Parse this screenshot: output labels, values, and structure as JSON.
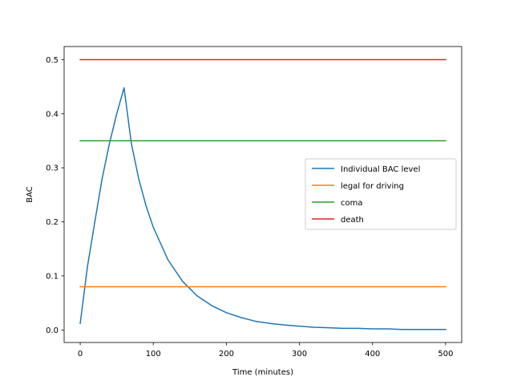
{
  "chart_data": {
    "type": "line",
    "title": "",
    "xlabel": "Time (minutes)",
    "ylabel": "BAC",
    "xlim": [
      -22,
      522
    ],
    "ylim": [
      -0.0232,
      0.5243
    ],
    "xticks": [
      0,
      100,
      200,
      300,
      400,
      500
    ],
    "xtick_labels": [
      "0",
      "100",
      "200",
      "300",
      "400",
      "500"
    ],
    "yticks": [
      0.0,
      0.1,
      0.2,
      0.3,
      0.4,
      0.5
    ],
    "ytick_labels": [
      "0.0",
      "0.1",
      "0.2",
      "0.3",
      "0.4",
      "0.5"
    ],
    "grid": false,
    "legend_position": "center-right",
    "series": [
      {
        "name": "Individual BAC level",
        "color": "#1f77b4",
        "x": [
          0,
          10,
          20,
          30,
          40,
          50,
          60,
          70,
          80,
          90,
          100,
          120,
          140,
          160,
          180,
          200,
          220,
          240,
          260,
          280,
          300,
          320,
          340,
          360,
          380,
          400,
          420,
          440,
          460,
          480,
          500
        ],
        "y": [
          0.012,
          0.118,
          0.2,
          0.28,
          0.345,
          0.4,
          0.448,
          0.345,
          0.28,
          0.23,
          0.19,
          0.13,
          0.09,
          0.063,
          0.045,
          0.032,
          0.023,
          0.016,
          0.012,
          0.009,
          0.007,
          0.005,
          0.004,
          0.003,
          0.003,
          0.002,
          0.002,
          0.001,
          0.001,
          0.001,
          0.001
        ]
      },
      {
        "name": "legal for driving",
        "color": "#ff7f0e",
        "x": [
          0,
          500
        ],
        "y": [
          0.08,
          0.08
        ]
      },
      {
        "name": "coma",
        "color": "#2ca02c",
        "x": [
          0,
          500
        ],
        "y": [
          0.35,
          0.35
        ]
      },
      {
        "name": "death",
        "color": "#d62728",
        "x": [
          0,
          500
        ],
        "y": [
          0.5,
          0.5
        ]
      }
    ]
  }
}
